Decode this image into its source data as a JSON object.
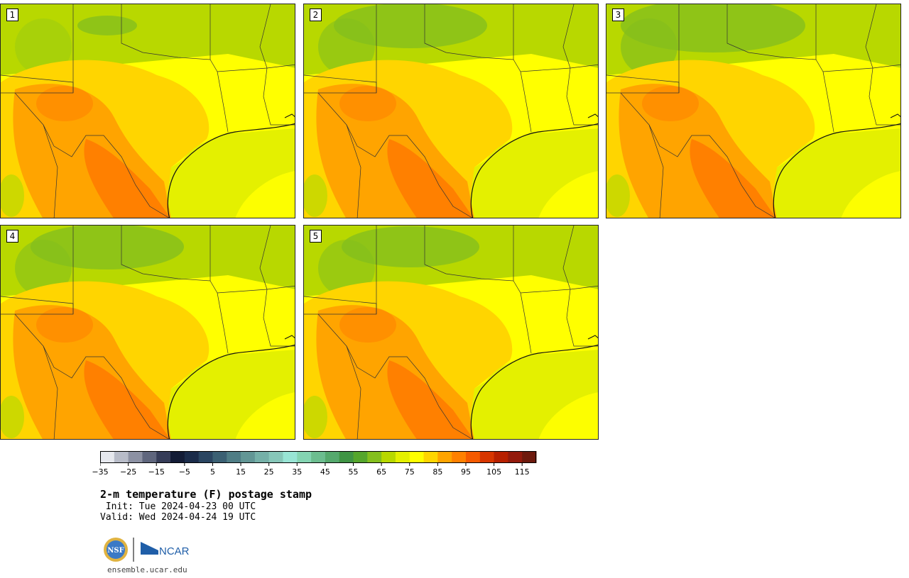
{
  "panels": [
    {
      "label": "1"
    },
    {
      "label": "2"
    },
    {
      "label": "3"
    },
    {
      "label": "4"
    },
    {
      "label": "5"
    }
  ],
  "colorbar": {
    "units": "F",
    "min": -35,
    "max": 120,
    "step": 5,
    "tick_labels": [
      "−35",
      "−25",
      "−15",
      "−5",
      "5",
      "15",
      "25",
      "35",
      "45",
      "55",
      "65",
      "75",
      "85",
      "95",
      "105",
      "115"
    ],
    "colors": [
      "#e6e8ee",
      "#b8bcc8",
      "#8c91a3",
      "#5f667d",
      "#363d58",
      "#131c36",
      "#1b2c4a",
      "#2a4561",
      "#3b6073",
      "#4f7d85",
      "#629695",
      "#75b0a8",
      "#87c7b9",
      "#98e4d4",
      "#84d4b2",
      "#6cbd8f",
      "#55a96d",
      "#3f9444",
      "#55a62c",
      "#84bf1d",
      "#b8d800",
      "#e4f000",
      "#ffff00",
      "#ffd500",
      "#ffa400",
      "#ff8000",
      "#f55a00",
      "#d73600",
      "#b72000",
      "#931a0c",
      "#6e1a0d"
    ]
  },
  "colors": {
    "gulf": "#e4f000",
    "land_base": "#ffd500",
    "hot": "#ff8000",
    "warm": "#ffa400",
    "cool": "#b8d800",
    "cooler": "#84bf1d",
    "mild": "#ffff00"
  },
  "text": {
    "title": "2-m temperature (F) postage stamp",
    "init": " Init: Tue 2024-04-23 00 UTC",
    "valid": "Valid: Wed 2024-04-24 19 UTC",
    "site": "ensemble.ucar.edu",
    "logo_left": "NSF",
    "logo_right": "NCAR"
  }
}
